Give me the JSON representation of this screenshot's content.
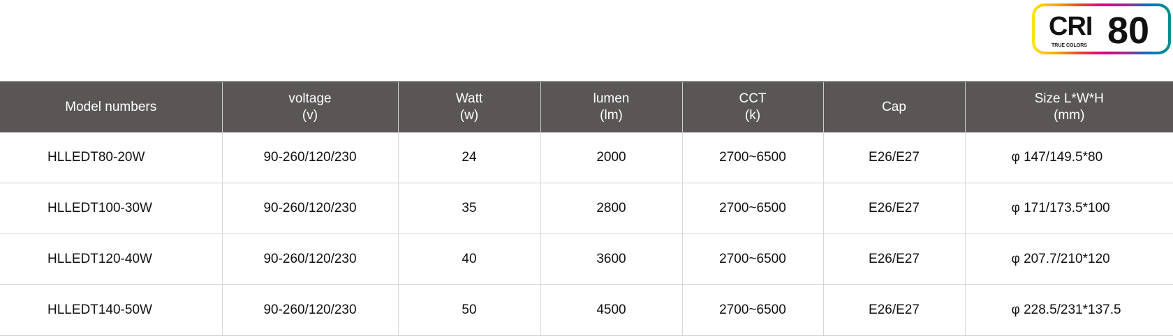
{
  "badge": {
    "label": "CRI",
    "subtitle": "TRUE COLORS",
    "value": "80"
  },
  "headers": [
    [
      "Model numbers",
      ""
    ],
    [
      "voltage",
      "(v)"
    ],
    [
      "Watt",
      "(w)"
    ],
    [
      "lumen",
      "(lm)"
    ],
    [
      "CCT",
      "(k)"
    ],
    [
      "Cap",
      ""
    ],
    [
      "Size L*W*H",
      "(mm)"
    ]
  ],
  "rows": [
    [
      "HLLEDT80-20W",
      "90-260/120/230",
      "24",
      "2000",
      "2700~6500",
      "E26/E27",
      "φ 147/149.5*80"
    ],
    [
      "HLLEDT100-30W",
      "90-260/120/230",
      "35",
      "2800",
      "2700~6500",
      "E26/E27",
      "φ 171/173.5*100"
    ],
    [
      "HLLEDT120-40W",
      "90-260/120/230",
      "40",
      "3600",
      "2700~6500",
      "E26/E27",
      "φ 207.7/210*120"
    ],
    [
      "HLLEDT140-50W",
      "90-260/120/230",
      "50",
      "4500",
      "2700~6500",
      "E26/E27",
      "φ 228.5/231*137.5"
    ]
  ]
}
